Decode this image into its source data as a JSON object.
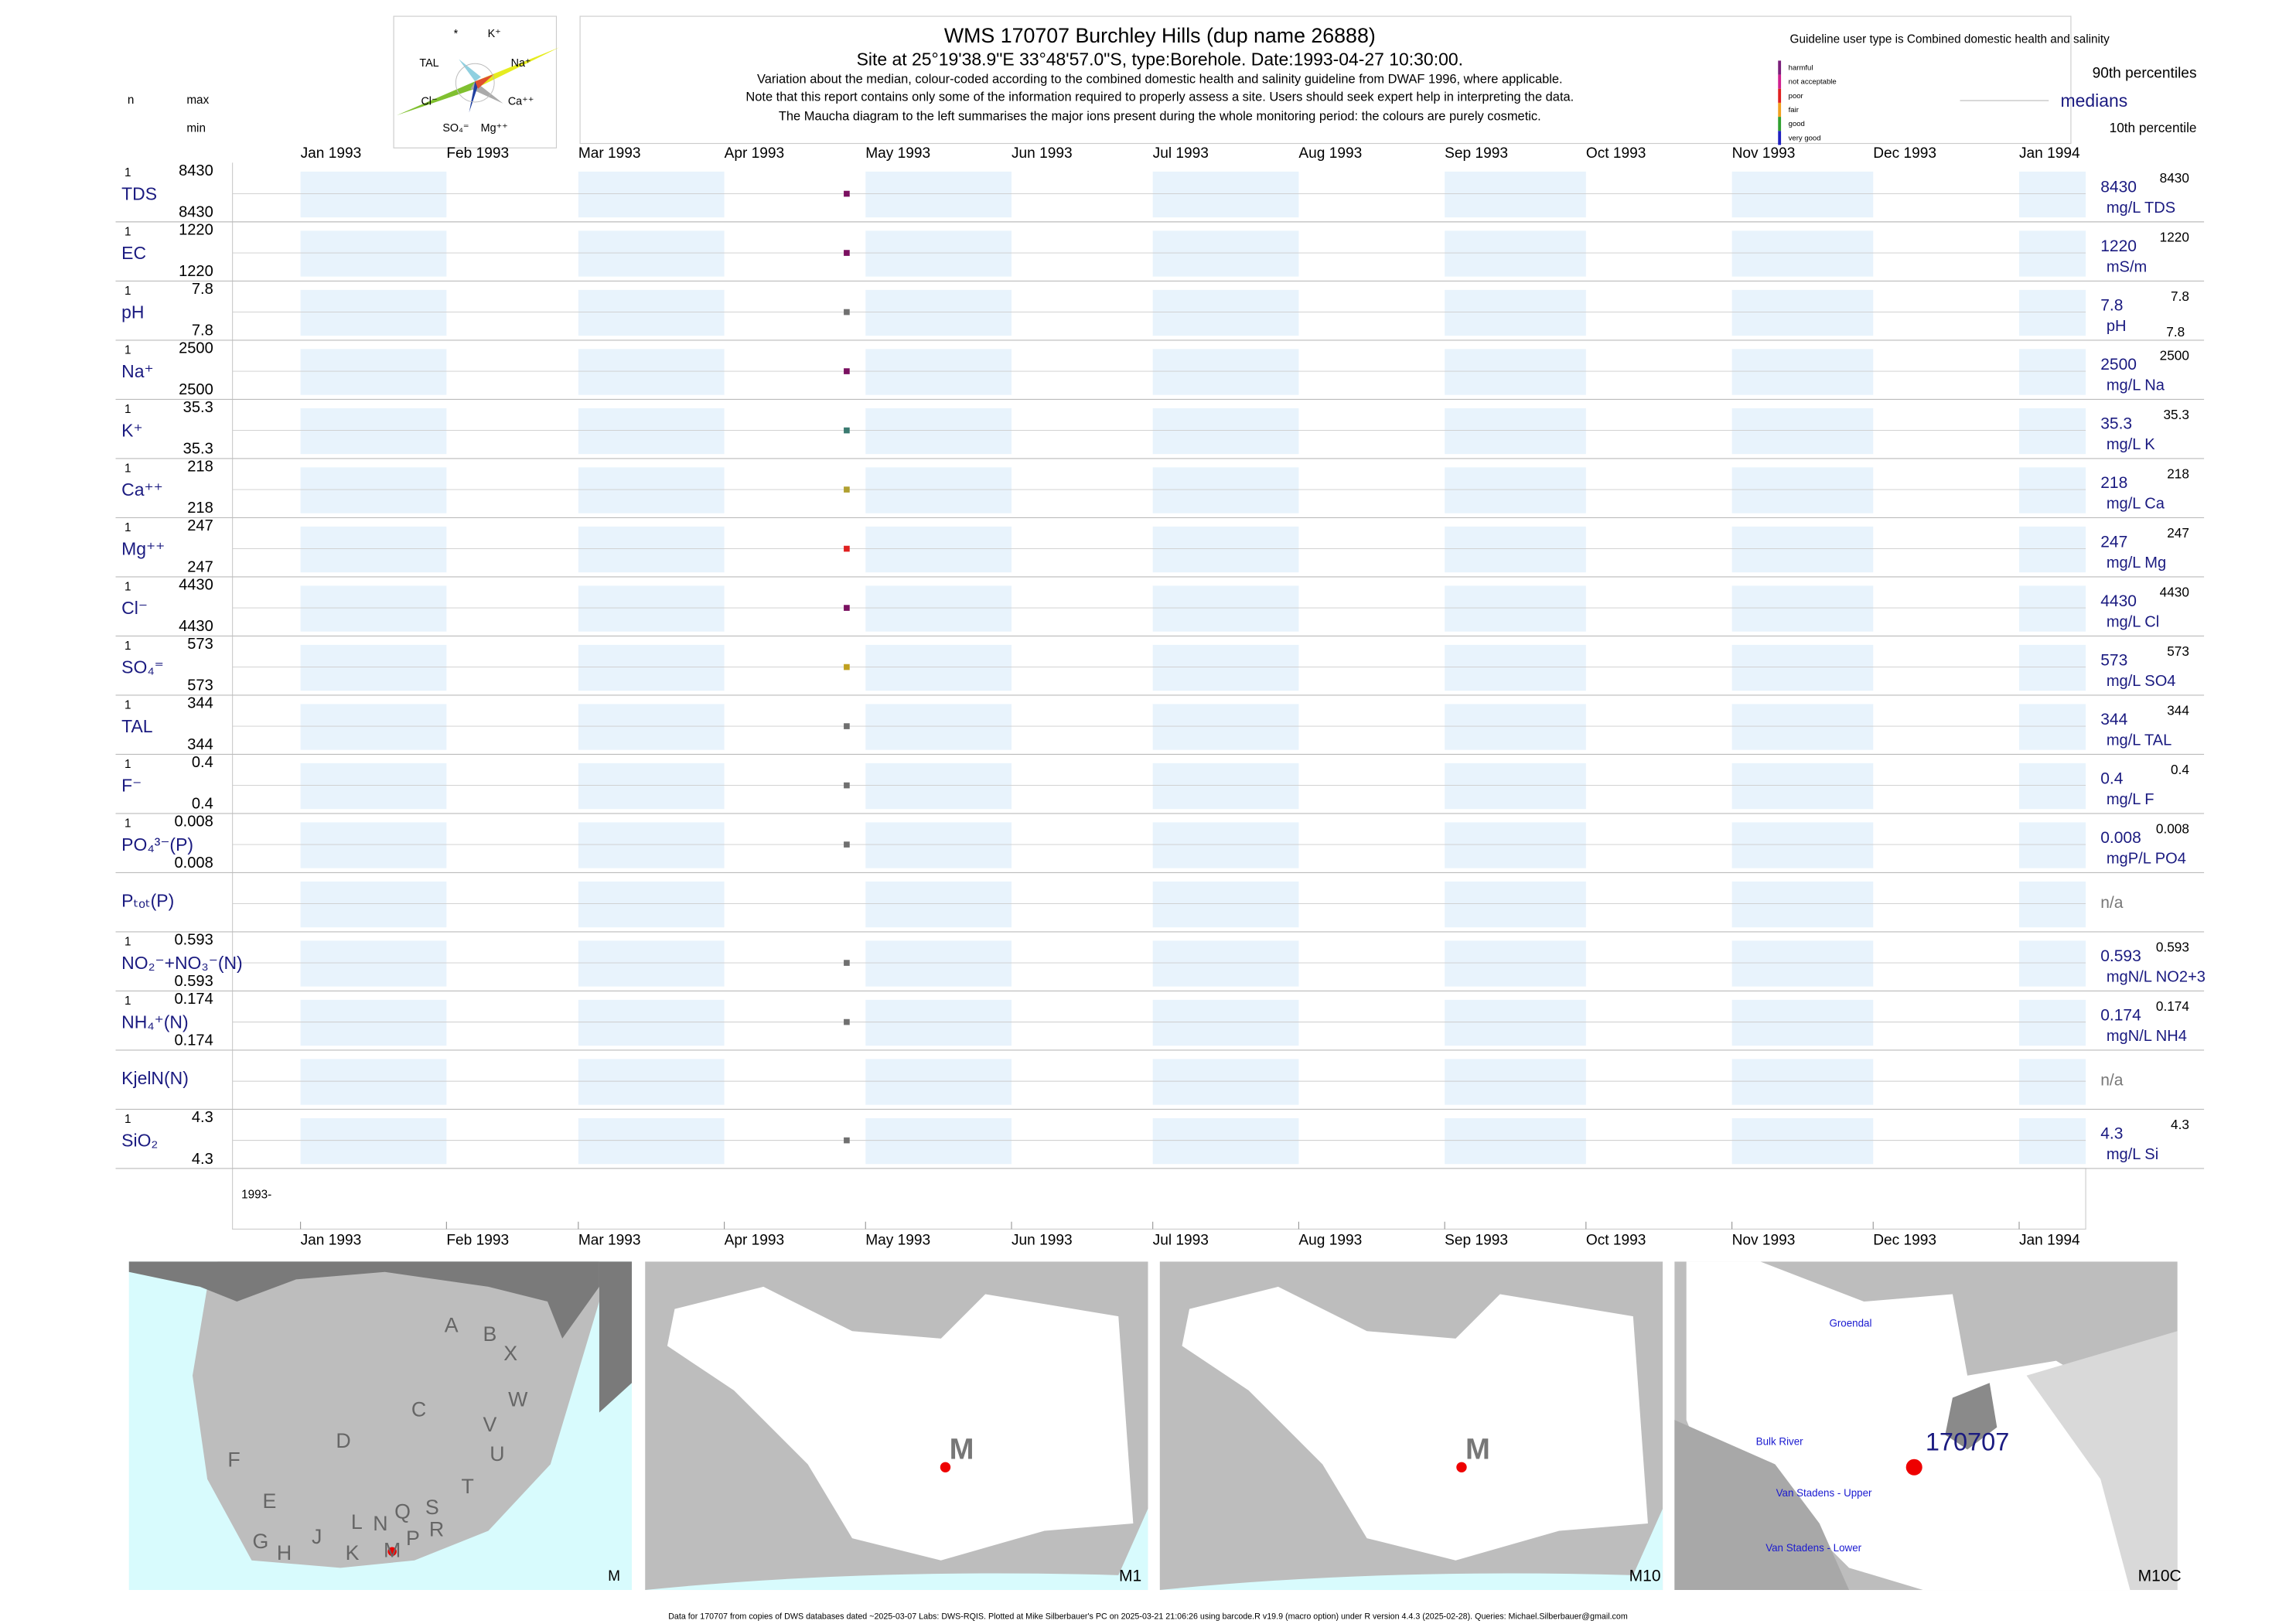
{
  "header": {
    "title": "WMS 170707  Burchley Hills (dup name 26888)",
    "subtitle": "Site at 25°19'38.9\"E 33°48'57.0\"S, type:Borehole. Date:1993-04-27 10:30:00.",
    "notes": [
      "Variation about the median,  colour-coded according to the combined domestic health and salinity guideline from DWAF 1996, where applicable.",
      "Note that this report contains only some of the information required to properly assess a site. Users should seek expert help in interpreting the data.",
      "The Maucha diagram to the left summarises the major ions present during the whole monitoring period: the colours are purely cosmetic."
    ],
    "guideline": "Guideline user type is Combined domestic health and salinity",
    "guideline_classes": [
      {
        "label": "harmful",
        "color": "#7b1f7b"
      },
      {
        "label": "not acceptable",
        "color": "#d0208f"
      },
      {
        "label": "poor",
        "color": "#e02020"
      },
      {
        "label": "fair",
        "color": "#f0a020"
      },
      {
        "label": "good",
        "color": "#30a030"
      },
      {
        "label": "very good",
        "color": "#2020c0"
      }
    ],
    "p90_label": "90th percentiles",
    "median_label": "medians",
    "p10_label": "10th percentile",
    "n_label": "n",
    "max_label": "max",
    "min_label": "min"
  },
  "maucha": {
    "labels": [
      "*",
      "K⁺",
      "TAL",
      "Na⁺",
      "Cl⁻",
      "Ca⁺⁺",
      "SO₄⁼",
      "Mg⁺⁺"
    ]
  },
  "date": "1993-04-27",
  "months": [
    "Jan 1993",
    "Feb 1993",
    "Mar 1993",
    "Apr 1993",
    "May 1993",
    "Jun 1993",
    "Jul 1993",
    "Aug 1993",
    "Sep 1993",
    "Oct 1993",
    "Nov 1993",
    "Dec 1993",
    "Jan 1994"
  ],
  "x_start": "1993-",
  "rows": [
    {
      "label": "TDS",
      "n": 1,
      "max": 8430,
      "min": 8430,
      "median": 8430,
      "p90": 8430,
      "unit": "mg/L TDS",
      "color": "#7a1060"
    },
    {
      "label": "EC",
      "n": 1,
      "max": 1220,
      "min": 1220,
      "median": 1220,
      "p90": 1220,
      "unit": "mS/m",
      "color": "#7a1060"
    },
    {
      "label": "pH",
      "n": 1,
      "max": 7.8,
      "min": 7.8,
      "median": 7.8,
      "p90": 7.8,
      "p10": 7.8,
      "unit": "pH",
      "color": "#707070"
    },
    {
      "label": "Na⁺",
      "n": 1,
      "max": 2500,
      "min": 2500,
      "median": 2500,
      "p90": 2500,
      "unit": "mg/L Na",
      "color": "#7a1060"
    },
    {
      "label": "K⁺",
      "n": 1,
      "max": 35.3,
      "min": 35.3,
      "median": 35.3,
      "p90": 35.3,
      "unit": "mg/L K",
      "color": "#3a7a70"
    },
    {
      "label": "Ca⁺⁺",
      "n": 1,
      "max": 218,
      "min": 218,
      "median": 218,
      "p90": 218,
      "unit": "mg/L Ca",
      "color": "#b0a030"
    },
    {
      "label": "Mg⁺⁺",
      "n": 1,
      "max": 247,
      "min": 247,
      "median": 247,
      "p90": 247,
      "unit": "mg/L Mg",
      "color": "#e02020"
    },
    {
      "label": "Cl⁻",
      "n": 1,
      "max": 4430,
      "min": 4430,
      "median": 4430,
      "p90": 4430,
      "unit": "mg/L Cl",
      "color": "#7a1060"
    },
    {
      "label": "SO₄⁼",
      "n": 1,
      "max": 573,
      "min": 573,
      "median": 573,
      "p90": 573,
      "unit": "mg/L SO4",
      "color": "#c0a020"
    },
    {
      "label": "TAL",
      "n": 1,
      "max": 344,
      "min": 344,
      "median": 344,
      "p90": 344,
      "unit": "mg/L TAL",
      "color": "#707070"
    },
    {
      "label": "F⁻",
      "n": 1,
      "max": 0.4,
      "min": 0.4,
      "median": 0.4,
      "p90": 0.4,
      "unit": "mg/L F",
      "color": "#707070"
    },
    {
      "label": "PO₄³⁻(P)",
      "n": 1,
      "max": 0.008,
      "min": 0.008,
      "median": 0.008,
      "p90": 0.008,
      "unit": "mgP/L PO4",
      "color": "#707070"
    },
    {
      "label": "Pₜₒₜ(P)",
      "median": "n/a"
    },
    {
      "label": "NO₂⁻+NO₃⁻(N)",
      "n": 1,
      "max": 0.593,
      "min": 0.593,
      "median": 0.593,
      "p90": 0.593,
      "unit": "mgN/L NO2+3",
      "color": "#707070"
    },
    {
      "label": "NH₄⁺(N)",
      "n": 1,
      "max": 0.174,
      "min": 0.174,
      "median": 0.174,
      "p90": 0.174,
      "unit": "mgN/L NH4",
      "color": "#707070"
    },
    {
      "label": "KjelN(N)",
      "median": "n/a"
    },
    {
      "label": "SiO₂",
      "n": 1,
      "max": 4.3,
      "min": 4.3,
      "median": 4.3,
      "p90": 4.3,
      "unit": "mg/L Si",
      "color": "#707070"
    }
  ],
  "maps": [
    {
      "caption": "M",
      "labels": [
        "A",
        "B",
        "X",
        "C",
        "W",
        "D",
        "V",
        "U",
        "F",
        "E",
        "T",
        "S",
        "Q",
        "N",
        "L",
        "R",
        "P",
        "G",
        "H",
        "J",
        "K",
        "M"
      ]
    },
    {
      "caption": "M1",
      "labels": [
        "M"
      ]
    },
    {
      "caption": "M10",
      "labels": [
        "M"
      ]
    },
    {
      "caption": "M10C",
      "labels": [
        "170707",
        "Groendal",
        "Bulk River",
        "Van Stadens - Upper",
        "Van Stadens - Lower"
      ]
    }
  ],
  "footer": "Data for 170707 from copies of DWS databases dated ~2025-03-07 Labs: DWS-RQIS. Plotted at Mike Silberbauer's PC on 2025-03-21 21:06:26 using barcode.R v19.9 (macro option) under R version 4.4.3 (2025-02-28). Queries: Michael.Silberbauer@gmail.com"
}
